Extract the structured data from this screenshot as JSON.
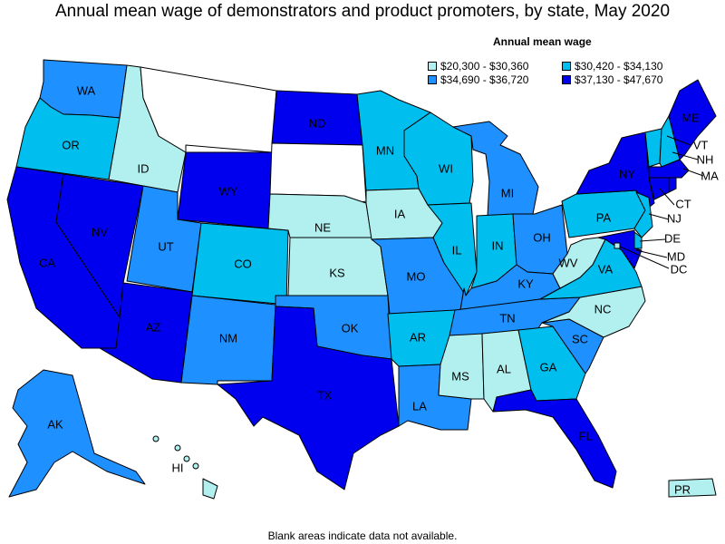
{
  "title": "Annual mean wage of demonstrators and product promoters, by state, May 2020",
  "legend": {
    "title": "Annual mean wage",
    "items": [
      {
        "id": "q1",
        "label": "$20,300 - $30,360",
        "color": "#b2f0f0"
      },
      {
        "id": "q2",
        "label": "$30,420 - $34,130",
        "color": "#00bfef"
      },
      {
        "id": "q3",
        "label": "$34,690 - $36,720",
        "color": "#1e90ff"
      },
      {
        "id": "q4",
        "label": "$37,130 - $47,670",
        "color": "#0000ee"
      }
    ]
  },
  "no_data_color": "#ffffff",
  "footnote": "Blank areas indicate data not available.",
  "states": {
    "WA": "q3",
    "OR": "q2",
    "CA": "q4",
    "NV": "q4",
    "ID": "q1",
    "MT": "none",
    "WY": "q4",
    "UT": "q3",
    "AZ": "q4",
    "CO": "q2",
    "NM": "q3",
    "ND": "q4",
    "SD": "none",
    "NE": "q1",
    "KS": "q1",
    "OK": "q3",
    "TX": "q4",
    "MN": "q2",
    "IA": "q1",
    "MO": "q3",
    "AR": "q2",
    "LA": "q3",
    "WI": "q2",
    "IL": "q2",
    "MI": "q3",
    "IN": "q2",
    "OH": "q3",
    "KY": "q3",
    "TN": "q3",
    "MS": "q1",
    "AL": "q1",
    "GA": "q2",
    "FL": "q4",
    "SC": "q3",
    "NC": "q1",
    "VA": "q2",
    "WV": "q1",
    "PA": "q2",
    "NY": "q4",
    "VT": "q2",
    "NH": "q2",
    "ME": "q4",
    "MA": "q4",
    "CT": "q4",
    "NJ": "q2",
    "DE": "q2",
    "MD": "q4",
    "DC": "q1",
    "AK": "q3",
    "HI": "q1",
    "PR": "q1",
    "RI": "q4"
  },
  "labels": [
    "WA",
    "OR",
    "CA",
    "NV",
    "ID",
    "WY",
    "UT",
    "AZ",
    "CO",
    "NM",
    "ND",
    "NE",
    "KS",
    "OK",
    "TX",
    "MN",
    "IA",
    "MO",
    "AR",
    "LA",
    "WI",
    "IL",
    "MI",
    "IN",
    "OH",
    "KY",
    "TN",
    "MS",
    "AL",
    "GA",
    "FL",
    "SC",
    "NC",
    "VA",
    "WV",
    "PA",
    "NY",
    "ME",
    "VT",
    "NH",
    "MA",
    "CT",
    "NJ",
    "DE",
    "MD",
    "DC",
    "AK",
    "HI",
    "PR"
  ]
}
